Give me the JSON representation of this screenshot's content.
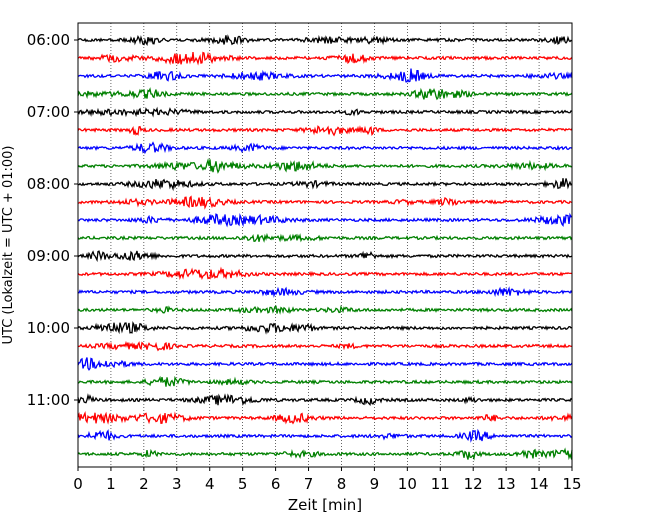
{
  "chart_data": {
    "type": "line",
    "title": "",
    "xlabel": "Zeit  [min]",
    "ylabel": "UTC (Lokalzeit = UTC + 01:00)",
    "xlim": [
      0,
      15
    ],
    "x_ticks": [
      0,
      1,
      2,
      3,
      4,
      5,
      6,
      7,
      8,
      9,
      10,
      11,
      12,
      13,
      14,
      15
    ],
    "x_tick_labels": [
      "0",
      "1",
      "2",
      "3",
      "4",
      "5",
      "6",
      "7",
      "8",
      "9",
      "10",
      "11",
      "12",
      "13",
      "14",
      "15"
    ],
    "y_axis_inverted": true,
    "grid": "vertical dotted lines at x ticks",
    "trace_colors": [
      "#000000",
      "#ff0000",
      "#0000ff",
      "#008000"
    ],
    "y_tick_labels": [
      "06:00",
      "07:00",
      "08:00",
      "09:00",
      "10:00",
      "11:00"
    ],
    "traces": [
      {
        "start": "06:00",
        "color": "#000000"
      },
      {
        "start": "06:15",
        "color": "#ff0000"
      },
      {
        "start": "06:30",
        "color": "#0000ff"
      },
      {
        "start": "06:45",
        "color": "#008000"
      },
      {
        "start": "07:00",
        "color": "#000000"
      },
      {
        "start": "07:15",
        "color": "#ff0000"
      },
      {
        "start": "07:30",
        "color": "#0000ff"
      },
      {
        "start": "07:45",
        "color": "#008000"
      },
      {
        "start": "08:00",
        "color": "#000000"
      },
      {
        "start": "08:15",
        "color": "#ff0000"
      },
      {
        "start": "08:30",
        "color": "#0000ff"
      },
      {
        "start": "08:45",
        "color": "#008000"
      },
      {
        "start": "09:00",
        "color": "#000000"
      },
      {
        "start": "09:15",
        "color": "#ff0000"
      },
      {
        "start": "09:30",
        "color": "#0000ff"
      },
      {
        "start": "09:45",
        "color": "#008000"
      },
      {
        "start": "10:00",
        "color": "#000000"
      },
      {
        "start": "10:15",
        "color": "#ff0000"
      },
      {
        "start": "10:30",
        "color": "#0000ff"
      },
      {
        "start": "10:45",
        "color": "#008000"
      },
      {
        "start": "11:00",
        "color": "#000000"
      },
      {
        "start": "11:15",
        "color": "#ff0000"
      },
      {
        "start": "11:30",
        "color": "#0000ff"
      },
      {
        "start": "11:45",
        "color": "#008000"
      }
    ]
  }
}
